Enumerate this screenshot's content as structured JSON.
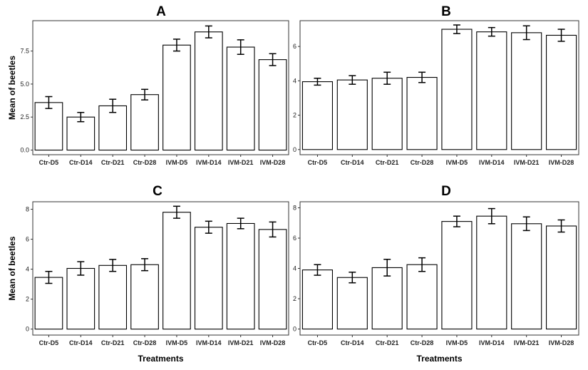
{
  "figure": {
    "xlabel": "Treatments",
    "ylabel": "Mean of beetles"
  },
  "chart_data": [
    {
      "type": "bar",
      "title": "A",
      "categories": [
        "Ctr-D5",
        "Ctr-D14",
        "Ctr-D21",
        "Ctr-D28",
        "IVM-D5",
        "IVM-D14",
        "IVM-D21",
        "IVM-D28"
      ],
      "values": [
        3.6,
        2.5,
        3.35,
        4.2,
        7.95,
        8.95,
        7.8,
        6.85
      ],
      "errors": [
        0.45,
        0.35,
        0.5,
        0.4,
        0.45,
        0.45,
        0.55,
        0.45
      ],
      "ylim": [
        -0.35,
        9.8
      ],
      "yticks": [
        "0.0",
        "2.5",
        "5.0",
        "7.5"
      ],
      "ytick_values": [
        0,
        2.5,
        5,
        7.5
      ],
      "xlabel": "",
      "ylabel": "Mean of beetles"
    },
    {
      "type": "bar",
      "title": "B",
      "categories": [
        "Ctr-D5",
        "Ctr-D14",
        "Ctr-D21",
        "Ctr-D28",
        "IVM-D5",
        "IVM-D14",
        "IVM-D21",
        "IVM-D28"
      ],
      "values": [
        3.95,
        4.05,
        4.15,
        4.2,
        7.0,
        6.85,
        6.8,
        6.65
      ],
      "errors": [
        0.2,
        0.25,
        0.35,
        0.3,
        0.25,
        0.25,
        0.4,
        0.35
      ],
      "ylim": [
        -0.3,
        7.5
      ],
      "yticks": [
        "0",
        "2",
        "4",
        "6"
      ],
      "ytick_values": [
        0,
        2,
        4,
        6
      ],
      "xlabel": "",
      "ylabel": ""
    },
    {
      "type": "bar",
      "title": "C",
      "categories": [
        "Ctr-D5",
        "Ctr-D14",
        "Ctr-D21",
        "Ctr-D28",
        "IVM-D5",
        "IVM-D14",
        "IVM-D21",
        "IVM-D28"
      ],
      "values": [
        3.45,
        4.05,
        4.25,
        4.3,
        7.8,
        6.8,
        7.05,
        6.65
      ],
      "errors": [
        0.4,
        0.45,
        0.4,
        0.4,
        0.4,
        0.4,
        0.35,
        0.5
      ],
      "ylim": [
        -0.4,
        8.5
      ],
      "yticks": [
        "0",
        "2",
        "4",
        "6",
        "8"
      ],
      "ytick_values": [
        0,
        2,
        4,
        6,
        8
      ],
      "xlabel": "Treatments",
      "ylabel": "Mean of beetles"
    },
    {
      "type": "bar",
      "title": "D",
      "categories": [
        "Ctr-D5",
        "Ctr-D14",
        "Ctr-D21",
        "Ctr-D28",
        "IVM-D5",
        "IVM-D14",
        "IVM-D21",
        "IVM-D28"
      ],
      "values": [
        3.9,
        3.4,
        4.05,
        4.25,
        7.1,
        7.45,
        6.95,
        6.8
      ],
      "errors": [
        0.35,
        0.35,
        0.55,
        0.45,
        0.35,
        0.5,
        0.45,
        0.4
      ],
      "ylim": [
        -0.4,
        8.4
      ],
      "yticks": [
        "0",
        "2",
        "4",
        "6",
        "8"
      ],
      "ytick_values": [
        0,
        2,
        4,
        6,
        8
      ],
      "xlabel": "Treatments",
      "ylabel": ""
    }
  ],
  "colors": {
    "bar_fill": "#ffffff",
    "bar_stroke": "#000000",
    "frame": "#333333",
    "tick_text": "#222222"
  }
}
